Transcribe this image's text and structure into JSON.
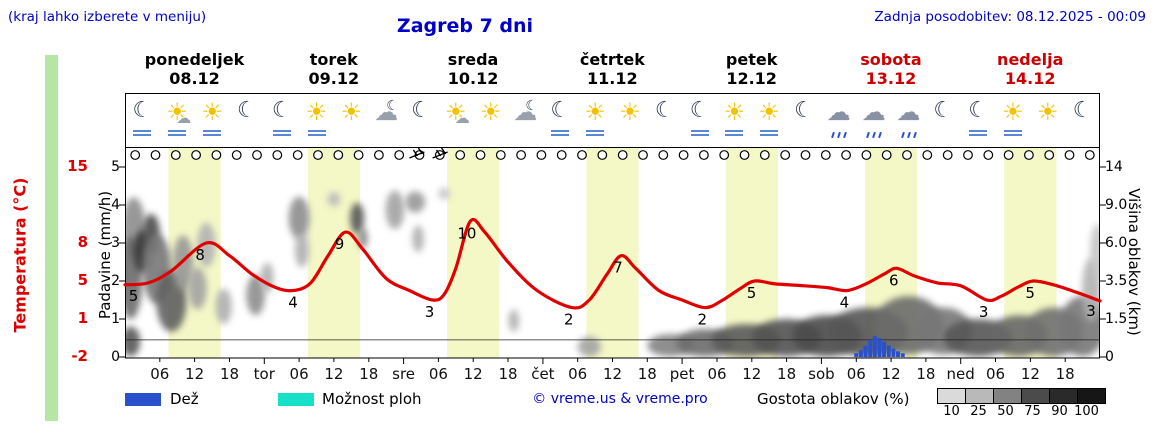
{
  "header": {
    "hint": "(kraj lahko izberete v meniju)",
    "title": "Zagreb 7 dni",
    "last_update": "Zadnja posodobitev: 08.12.2025 - 00:09"
  },
  "colors": {
    "blue_text": "#0000c8",
    "red": "#dd0000",
    "day_red": "#cc0000",
    "band_yellow": "#f4f8c6",
    "rain_blue": "#2b50cc",
    "shower_cyan": "#17e0c9"
  },
  "axes": {
    "temperature": {
      "label": "Temperatura (°C)",
      "ticks": [
        "15",
        "8",
        "5",
        "1",
        "-2"
      ],
      "tick_values": [
        15,
        8,
        5,
        1,
        -2
      ]
    },
    "precipitation": {
      "label": "Padavine (mm/h)",
      "ticks": [
        "5",
        "4",
        "3",
        "2",
        "1",
        "0"
      ],
      "tick_values": [
        5,
        4,
        3,
        2,
        1,
        0
      ]
    },
    "cloud_height": {
      "label": "Višina oblakov (km)",
      "ticks": [
        "14",
        "9.0",
        "6.0",
        "3.5",
        "1.5",
        "0"
      ],
      "tick_values": [
        14,
        9,
        6,
        3.5,
        1.5,
        0
      ]
    },
    "x": {
      "ticks": [
        "06",
        "12",
        "18",
        "tor",
        "06",
        "12",
        "18",
        "sre",
        "06",
        "12",
        "18",
        "čet",
        "06",
        "12",
        "18",
        "pet",
        "06",
        "12",
        "18",
        "sob",
        "06",
        "12",
        "18",
        "ned",
        "06",
        "12",
        "18"
      ]
    }
  },
  "days": [
    {
      "name": "ponedeljek",
      "date": "08.12",
      "highlight": false
    },
    {
      "name": "torek",
      "date": "09.12",
      "highlight": false
    },
    {
      "name": "sreda",
      "date": "10.12",
      "highlight": false
    },
    {
      "name": "četrtek",
      "date": "11.12",
      "highlight": false
    },
    {
      "name": "petek",
      "date": "12.12",
      "highlight": false
    },
    {
      "name": "sobota",
      "date": "13.12",
      "highlight": true
    },
    {
      "name": "nedelja",
      "date": "14.12",
      "highlight": true
    }
  ],
  "icons": {
    "per_day": [
      [
        {
          "type": "moon",
          "fog": true
        },
        {
          "type": "sun-cloud",
          "fog": true
        },
        {
          "type": "sun",
          "fog": true
        },
        {
          "type": "moon",
          "fog": false
        }
      ],
      [
        {
          "type": "moon",
          "fog": true
        },
        {
          "type": "sun",
          "fog": true
        },
        {
          "type": "sun",
          "fog": false
        },
        {
          "type": "cloud-moon",
          "fog": false
        }
      ],
      [
        {
          "type": "moon",
          "fog": false
        },
        {
          "type": "sun-cloud",
          "fog": false
        },
        {
          "type": "sun",
          "fog": false
        },
        {
          "type": "cloud-moon",
          "fog": false
        }
      ],
      [
        {
          "type": "moon",
          "fog": true
        },
        {
          "type": "sun",
          "fog": true
        },
        {
          "type": "sun",
          "fog": false
        },
        {
          "type": "moon",
          "fog": false
        }
      ],
      [
        {
          "type": "moon",
          "fog": true
        },
        {
          "type": "sun",
          "fog": true
        },
        {
          "type": "sun",
          "fog": true
        },
        {
          "type": "moon",
          "fog": false
        }
      ],
      [
        {
          "type": "cloud-rain",
          "fog": false
        },
        {
          "type": "cloud-rain",
          "fog": false
        },
        {
          "type": "cloud-rain",
          "fog": false
        },
        {
          "type": "moon",
          "fog": false
        }
      ],
      [
        {
          "type": "moon",
          "fog": true
        },
        {
          "type": "sun",
          "fog": true
        },
        {
          "type": "sun",
          "fog": false
        },
        {
          "type": "moon",
          "fog": false
        }
      ]
    ]
  },
  "chart_data": {
    "type": "line",
    "title": "Zagreb 7 dni",
    "x_axis": {
      "unit": "hour",
      "range_hours": [
        0,
        168
      ],
      "start_day": "ponedeljek 08.12",
      "tick_interval_h": 6
    },
    "daytime_band_local_hours": [
      7.5,
      16.5
    ],
    "temperature": {
      "name": "Temperatura (°C)",
      "color": "#e00000",
      "value_to_level_anchors": [
        [
          -2,
          0
        ],
        [
          1,
          1
        ],
        [
          5,
          2
        ],
        [
          8,
          3
        ],
        [
          15,
          5
        ]
      ],
      "points": [
        [
          0,
          4.6
        ],
        [
          4,
          4.8
        ],
        [
          8,
          5.8
        ],
        [
          14,
          8
        ],
        [
          18,
          7
        ],
        [
          22,
          5.5
        ],
        [
          26,
          4.3
        ],
        [
          29,
          4
        ],
        [
          32,
          4.8
        ],
        [
          35,
          7
        ],
        [
          38,
          9
        ],
        [
          41,
          7.5
        ],
        [
          45,
          5.2
        ],
        [
          49,
          4
        ],
        [
          53,
          3
        ],
        [
          55,
          3.6
        ],
        [
          57,
          6
        ],
        [
          59.5,
          10
        ],
        [
          62,
          9
        ],
        [
          66,
          6.5
        ],
        [
          71,
          4
        ],
        [
          77,
          2.2
        ],
        [
          80,
          3
        ],
        [
          83,
          5.5
        ],
        [
          85.5,
          7
        ],
        [
          88,
          6
        ],
        [
          92,
          4
        ],
        [
          96,
          3
        ],
        [
          100,
          2.2
        ],
        [
          103,
          3
        ],
        [
          106,
          4.2
        ],
        [
          108.5,
          5
        ],
        [
          112,
          4.7
        ],
        [
          117,
          4.5
        ],
        [
          121,
          4.3
        ],
        [
          124.5,
          4
        ],
        [
          128,
          4.8
        ],
        [
          131,
          5.6
        ],
        [
          133,
          6
        ],
        [
          136,
          5.4
        ],
        [
          140,
          4.8
        ],
        [
          144,
          4.5
        ],
        [
          148.5,
          3
        ],
        [
          151,
          3.4
        ],
        [
          154,
          4.4
        ],
        [
          156.5,
          5
        ],
        [
          160,
          4.6
        ],
        [
          164,
          3.8
        ],
        [
          168,
          2.9
        ]
      ],
      "point_labels": [
        {
          "t": 1.5,
          "v": 4.7,
          "text": "5"
        },
        {
          "t": 13,
          "v": 8,
          "text": "8"
        },
        {
          "t": 29,
          "v": 4,
          "text": "4"
        },
        {
          "t": 37,
          "v": 9,
          "text": "9"
        },
        {
          "t": 52.5,
          "v": 3,
          "text": "3"
        },
        {
          "t": 59,
          "v": 10,
          "text": "10"
        },
        {
          "t": 76.5,
          "v": 2.2,
          "text": "2"
        },
        {
          "t": 85,
          "v": 7,
          "text": "7"
        },
        {
          "t": 99.5,
          "v": 2.2,
          "text": "2"
        },
        {
          "t": 108,
          "v": 5,
          "text": "5"
        },
        {
          "t": 124,
          "v": 4,
          "text": "4"
        },
        {
          "t": 132.5,
          "v": 6,
          "text": "6"
        },
        {
          "t": 148,
          "v": 3,
          "text": "3"
        },
        {
          "t": 156,
          "v": 5,
          "text": "5"
        },
        {
          "t": 166.5,
          "v": 3.1,
          "text": "3"
        }
      ]
    },
    "precipitation": {
      "name": "Padavine (mm/h)",
      "color": "#2b50cc",
      "bars": [
        [
          126,
          0.1
        ],
        [
          126.8,
          0.18
        ],
        [
          127.6,
          0.3
        ],
        [
          128.4,
          0.45
        ],
        [
          129.2,
          0.55
        ],
        [
          130,
          0.5
        ],
        [
          130.8,
          0.4
        ],
        [
          131.6,
          0.3
        ],
        [
          132.4,
          0.22
        ],
        [
          133.2,
          0.15
        ],
        [
          134,
          0.1
        ]
      ]
    },
    "cloud_height_km": {
      "name": "Višina oblakov (km)",
      "km_to_level_anchors": [
        [
          0,
          0
        ],
        [
          1.5,
          1
        ],
        [
          3.5,
          2
        ],
        [
          6,
          3
        ],
        [
          9,
          4
        ],
        [
          14,
          5
        ]
      ],
      "density_blobs": [
        [
          1.5,
          7.5,
          2,
          2.5,
          45
        ],
        [
          1,
          4,
          2,
          2.5,
          60
        ],
        [
          3,
          5.5,
          1.5,
          1.5,
          85
        ],
        [
          4.5,
          6.8,
          1.5,
          1.5,
          75
        ],
        [
          5.5,
          4.5,
          2.5,
          2.2,
          55
        ],
        [
          8,
          2.6,
          2.6,
          1.6,
          65
        ],
        [
          10,
          4.8,
          1.8,
          1.8,
          40
        ],
        [
          12.5,
          3.2,
          1.6,
          1.2,
          35
        ],
        [
          14,
          6,
          1.6,
          1.6,
          28
        ],
        [
          1,
          0.6,
          1.6,
          0.6,
          70
        ],
        [
          17,
          2.2,
          1.4,
          0.9,
          30
        ],
        [
          22.5,
          2.8,
          1.6,
          1.1,
          45
        ],
        [
          24.5,
          3.8,
          1.1,
          0.9,
          30
        ],
        [
          30,
          8.2,
          1.8,
          1.9,
          45
        ],
        [
          30.5,
          5.6,
          1.2,
          1.2,
          30
        ],
        [
          36,
          9.8,
          1.1,
          0.9,
          25
        ],
        [
          40,
          8,
          1.2,
          1.3,
          70
        ],
        [
          41,
          6.4,
          0.8,
          0.8,
          50
        ],
        [
          46.5,
          9,
          1.6,
          1.9,
          35
        ],
        [
          50,
          9.6,
          1.7,
          1.2,
          40
        ],
        [
          50.5,
          6.4,
          1,
          1,
          30
        ],
        [
          55,
          10.5,
          1,
          0.8,
          20
        ],
        [
          67,
          1.5,
          0.9,
          0.5,
          30
        ],
        [
          80,
          0.4,
          2,
          0.4,
          35
        ],
        [
          94,
          0.4,
          4,
          0.5,
          50
        ],
        [
          100,
          0.5,
          5,
          0.6,
          60
        ],
        [
          107,
          0.6,
          6,
          0.7,
          68
        ],
        [
          114,
          0.7,
          6,
          0.8,
          72
        ],
        [
          121,
          0.8,
          6,
          0.9,
          75
        ],
        [
          128,
          1,
          7,
          1.1,
          70
        ],
        [
          135,
          1.4,
          6,
          1.3,
          60
        ],
        [
          141,
          1.1,
          5,
          1,
          55
        ],
        [
          147,
          0.7,
          6,
          0.8,
          70
        ],
        [
          154,
          0.8,
          5,
          0.9,
          62
        ],
        [
          160,
          1,
          5,
          1.1,
          58
        ],
        [
          165,
          1.3,
          4,
          1.4,
          55
        ],
        [
          166.5,
          3.2,
          1.6,
          1.8,
          28
        ],
        [
          167.5,
          5.5,
          1.2,
          2,
          20
        ]
      ]
    },
    "hour_markers": {
      "count": 48,
      "radius_px": 4.3
    },
    "wind_barbs_t": [
      49,
      53
    ],
    "inner_hline_level": 0.45
  },
  "legend": {
    "rain_label": "Dež",
    "shower_label": "Možnost ploh",
    "copyright": "© vreme.us & vreme.pro",
    "cloud_density_label": "Gostota oblakov (%)",
    "density_ticks": [
      "10",
      "25",
      "50",
      "75",
      "90",
      "100"
    ],
    "density_values": [
      10,
      25,
      50,
      75,
      90,
      100
    ]
  }
}
